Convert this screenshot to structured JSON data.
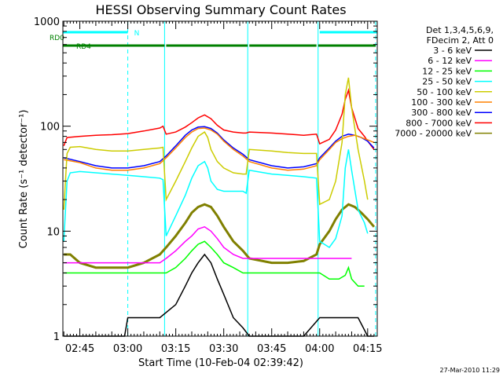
{
  "chart_data": {
    "type": "line",
    "title": "HESSI Observing Summary Count Rates",
    "xlabel": "Start Time (10-Feb-04 02:39:42)",
    "ylabel": "Count Rate (s⁻¹ detector⁻¹)",
    "x_unit": "minutes",
    "xlim": [
      "02:39:42",
      "04:18:00"
    ],
    "ylim": [
      1,
      1000
    ],
    "yscale": "log",
    "x_ticks": [
      "02:45",
      "03:00",
      "03:15",
      "03:30",
      "03:45",
      "04:00",
      "04:15"
    ],
    "y_ticks": [
      "1",
      "10",
      "100",
      "1000"
    ],
    "grid": false,
    "legend_placement": "top-right",
    "legend_header": [
      "Det 1,3,4,5,6,9,",
      "FDecim 2, Att 0"
    ],
    "timestamp": "27-Mar-2010 11:29",
    "annotations": [
      {
        "label": "RD0",
        "color": "#00ffff",
        "segments": [
          [
            "02:39:42",
            "03:00:00"
          ],
          [
            "04:00:00",
            "04:18:00"
          ]
        ]
      },
      {
        "label": "N",
        "color": "#00ffff",
        "time": "03:00:30"
      },
      {
        "label": "RD4",
        "color": "#008000",
        "segments": [
          [
            "02:39:42",
            "03:11:30"
          ],
          [
            "03:12:00",
            "03:37:30"
          ],
          [
            "03:38:00",
            "03:59:00"
          ],
          [
            "03:59:30",
            "04:17:30"
          ]
        ]
      }
    ],
    "vertical_lines": {
      "solid": [
        "02:39:42",
        "03:11:30",
        "03:37:30",
        "03:59:30"
      ],
      "dashed": [
        "03:00:00",
        "04:17:30"
      ],
      "color": "#00ffff"
    },
    "series": [
      {
        "name": "3 - 6 keV",
        "color": "#000000",
        "x": [
          "02:40",
          "02:59",
          "03:00",
          "03:05",
          "03:10",
          "03:15",
          "03:18",
          "03:20",
          "03:22",
          "03:24",
          "03:26",
          "03:28",
          "03:30",
          "03:33",
          "03:36",
          "03:38",
          "03:55",
          "04:00",
          "04:03",
          "04:06",
          "04:08",
          "04:10",
          "04:12",
          "04:15",
          "04:17"
        ],
        "y": [
          1.0,
          1.0,
          1.5,
          1.5,
          1.5,
          2.0,
          3.0,
          4.0,
          5.0,
          6.0,
          5.0,
          3.5,
          2.5,
          1.5,
          1.2,
          1.0,
          1.0,
          1.5,
          1.5,
          1.5,
          1.5,
          1.5,
          1.5,
          1.0,
          1.0
        ]
      },
      {
        "name": "6 - 12 keV",
        "color": "#ff00ff",
        "x": [
          "02:40",
          "02:59",
          "03:05",
          "03:10",
          "03:12",
          "03:15",
          "03:18",
          "03:20",
          "03:22",
          "03:24",
          "03:26",
          "03:28",
          "03:30",
          "03:33",
          "03:36",
          "03:38",
          "03:50",
          "03:59",
          "04:00",
          "04:05",
          "04:10"
        ],
        "y": [
          5.0,
          5.0,
          5.0,
          5.0,
          5.5,
          6.5,
          8.0,
          9.0,
          10.5,
          11.0,
          10.0,
          8.5,
          7.0,
          6.0,
          5.5,
          5.5,
          5.5,
          5.5,
          5.5,
          5.5,
          5.5
        ]
      },
      {
        "name": "12 - 25 keV",
        "color": "#00ff00",
        "x": [
          "02:40",
          "02:59",
          "03:05",
          "03:10",
          "03:12",
          "03:15",
          "03:18",
          "03:20",
          "03:22",
          "03:24",
          "03:26",
          "03:28",
          "03:30",
          "03:33",
          "03:36",
          "03:38",
          "03:50",
          "03:59",
          "04:00",
          "04:03",
          "04:06",
          "04:08",
          "04:09",
          "04:10",
          "04:12",
          "04:14"
        ],
        "y": [
          4.0,
          4.0,
          4.0,
          4.0,
          4.0,
          4.5,
          5.5,
          6.5,
          7.5,
          8.0,
          7.0,
          6.0,
          5.0,
          4.5,
          4.0,
          4.0,
          4.0,
          4.0,
          4.0,
          3.5,
          3.5,
          3.8,
          4.5,
          3.5,
          3.0,
          3.0
        ]
      },
      {
        "name": "25 - 50 keV",
        "color": "#00ffff",
        "x": [
          "02:40",
          "02:41",
          "02:42",
          "02:45",
          "02:50",
          "02:55",
          "03:00",
          "03:05",
          "03:10",
          "03:11",
          "03:12",
          "03:15",
          "03:18",
          "03:20",
          "03:22",
          "03:24",
          "03:25",
          "03:26",
          "03:28",
          "03:30",
          "03:33",
          "03:36",
          "03:37",
          "03:38",
          "03:45",
          "03:50",
          "03:55",
          "03:59",
          "04:00",
          "04:03",
          "04:05",
          "04:07",
          "04:08",
          "04:09",
          "04:10",
          "04:12",
          "04:14",
          "04:15"
        ],
        "y": [
          8.0,
          30.0,
          36.0,
          37.0,
          36.0,
          35.0,
          34.0,
          33.0,
          32.0,
          31.0,
          9.0,
          14.0,
          22.0,
          32.0,
          42.0,
          46.0,
          40.0,
          30.0,
          25.0,
          24.0,
          24.0,
          24.0,
          23.0,
          38.0,
          35.0,
          34.0,
          33.0,
          32.0,
          8.0,
          7.0,
          8.5,
          14.0,
          40.0,
          60.0,
          38.0,
          16.0,
          12.0,
          9.5
        ]
      },
      {
        "name": "50 - 100 keV",
        "color": "#cccc00",
        "x": [
          "02:40",
          "02:41",
          "02:42",
          "02:45",
          "02:50",
          "02:55",
          "03:00",
          "03:05",
          "03:10",
          "03:11",
          "03:12",
          "03:15",
          "03:18",
          "03:20",
          "03:22",
          "03:24",
          "03:25",
          "03:26",
          "03:28",
          "03:30",
          "03:33",
          "03:36",
          "03:37",
          "03:38",
          "03:45",
          "03:50",
          "03:55",
          "03:59",
          "04:00",
          "04:03",
          "04:05",
          "04:07",
          "04:08",
          "04:09",
          "04:10",
          "04:12",
          "04:14",
          "04:15"
        ],
        "y": [
          16.0,
          55.0,
          63.0,
          64.0,
          60.0,
          58.0,
          58.0,
          60.0,
          62.0,
          63.0,
          20.0,
          30.0,
          46.0,
          62.0,
          80.0,
          88.0,
          78.0,
          60.0,
          46.0,
          40.0,
          36.0,
          35.0,
          35.0,
          60.0,
          58.0,
          56.0,
          55.0,
          55.0,
          18.0,
          20.0,
          30.0,
          70.0,
          200.0,
          290.0,
          150.0,
          60.0,
          30.0,
          20.0
        ]
      },
      {
        "name": "100 - 300 keV",
        "color": "#ff8000",
        "x": [
          "02:40",
          "02:45",
          "02:50",
          "02:55",
          "03:00",
          "03:05",
          "03:10",
          "03:12",
          "03:15",
          "03:18",
          "03:20",
          "03:22",
          "03:24",
          "03:26",
          "03:28",
          "03:30",
          "03:33",
          "03:36",
          "03:38",
          "03:45",
          "03:50",
          "03:55",
          "03:59",
          "04:00",
          "04:03",
          "04:05",
          "04:07",
          "04:09",
          "04:11",
          "04:13",
          "04:15",
          "04:17"
        ],
        "y": [
          48.0,
          45.0,
          40.0,
          38.0,
          38.0,
          40.0,
          44.0,
          50.0,
          62.0,
          78.0,
          88.0,
          95.0,
          96.0,
          92.0,
          84.0,
          72.0,
          60.0,
          52.0,
          46.0,
          40.0,
          38.0,
          39.0,
          42.0,
          48.0,
          60.0,
          70.0,
          76.0,
          80.0,
          82.0,
          78.0,
          74.0,
          70.0
        ]
      },
      {
        "name": "300 - 800 keV",
        "color": "#0000ff",
        "x": [
          "02:40",
          "02:45",
          "02:50",
          "02:55",
          "03:00",
          "03:05",
          "03:10",
          "03:12",
          "03:15",
          "03:18",
          "03:20",
          "03:22",
          "03:24",
          "03:26",
          "03:28",
          "03:30",
          "03:33",
          "03:36",
          "03:38",
          "03:45",
          "03:50",
          "03:55",
          "03:59",
          "04:00",
          "04:03",
          "04:05",
          "04:07",
          "04:09",
          "04:11",
          "04:13",
          "04:15",
          "04:17"
        ],
        "y": [
          50.0,
          46.0,
          42.0,
          40.0,
          40.0,
          42.0,
          46.0,
          52.0,
          65.0,
          82.0,
          92.0,
          98.0,
          99.0,
          95.0,
          86.0,
          74.0,
          62.0,
          54.0,
          48.0,
          42.0,
          40.0,
          41.0,
          44.0,
          50.0,
          62.0,
          72.0,
          80.0,
          84.0,
          82.0,
          78.0,
          72.0,
          62.0
        ]
      },
      {
        "name": "800 - 7000 keV",
        "color": "#ff0000",
        "x": [
          "02:40",
          "02:41",
          "02:45",
          "02:50",
          "02:55",
          "03:00",
          "03:05",
          "03:10",
          "03:11",
          "03:12",
          "03:15",
          "03:18",
          "03:20",
          "03:22",
          "03:24",
          "03:26",
          "03:28",
          "03:30",
          "03:33",
          "03:36",
          "03:37",
          "03:38",
          "03:45",
          "03:50",
          "03:55",
          "03:59",
          "04:00",
          "04:03",
          "04:05",
          "04:07",
          "04:08",
          "04:09",
          "04:10",
          "04:12",
          "04:14",
          "04:15",
          "04:17"
        ],
        "y": [
          65.0,
          78.0,
          80.0,
          82.0,
          83.0,
          85.0,
          90.0,
          96.0,
          100.0,
          84.0,
          88.0,
          98.0,
          108.0,
          120.0,
          128.0,
          118.0,
          102.0,
          92.0,
          88.0,
          86.0,
          86.0,
          88.0,
          86.0,
          84.0,
          82.0,
          84.0,
          68.0,
          75.0,
          92.0,
          130.0,
          180.0,
          220.0,
          150.0,
          95.0,
          80.0,
          72.0,
          60.0
        ]
      },
      {
        "name": "7000 - 20000 keV",
        "color": "#808000",
        "x": [
          "02:40",
          "02:42",
          "02:45",
          "02:50",
          "02:55",
          "03:00",
          "03:05",
          "03:10",
          "03:12",
          "03:15",
          "03:18",
          "03:20",
          "03:22",
          "03:24",
          "03:26",
          "03:28",
          "03:30",
          "03:33",
          "03:36",
          "03:38",
          "03:45",
          "03:50",
          "03:55",
          "03:59",
          "04:00",
          "04:03",
          "04:05",
          "04:07",
          "04:09",
          "04:11",
          "04:13",
          "04:15",
          "04:17"
        ],
        "y": [
          6.0,
          6.0,
          5.0,
          4.5,
          4.5,
          4.5,
          5.0,
          6.0,
          7.0,
          9.0,
          12.0,
          15.0,
          17.0,
          18.0,
          17.0,
          14.0,
          11.0,
          8.0,
          6.5,
          5.5,
          5.0,
          5.0,
          5.2,
          6.0,
          7.5,
          10.0,
          13.0,
          16.0,
          18.0,
          17.0,
          15.0,
          13.0,
          11.0
        ]
      }
    ]
  }
}
